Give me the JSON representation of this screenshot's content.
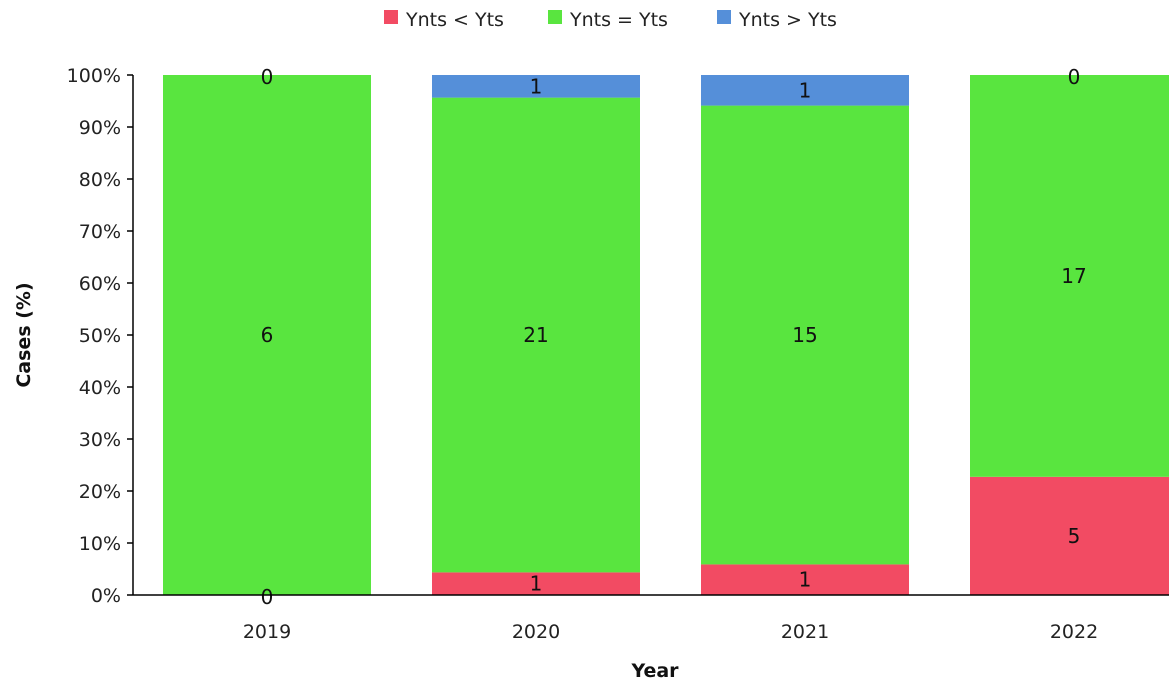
{
  "chart_data": {
    "type": "bar",
    "stacked": true,
    "normalized": true,
    "categories": [
      "2019",
      "2020",
      "2021",
      "2022"
    ],
    "series": [
      {
        "name": "Ynts < Yts",
        "values": [
          0,
          1,
          1,
          5
        ],
        "color": "#f24b63"
      },
      {
        "name": "Ynts = Yts",
        "values": [
          6,
          21,
          15,
          17
        ],
        "color": "#59e53f"
      },
      {
        "name": "Ynts > Yts",
        "values": [
          0,
          1,
          1,
          0
        ],
        "color": "#558fd9"
      }
    ],
    "xlabel": "Year",
    "ylabel": "Cases (%)",
    "ylim": [
      0,
      100
    ],
    "yticks": [
      "0%",
      "10%",
      "20%",
      "30%",
      "40%",
      "50%",
      "60%",
      "70%",
      "80%",
      "90%",
      "100%"
    ],
    "grid": false,
    "legend_position": "top"
  }
}
